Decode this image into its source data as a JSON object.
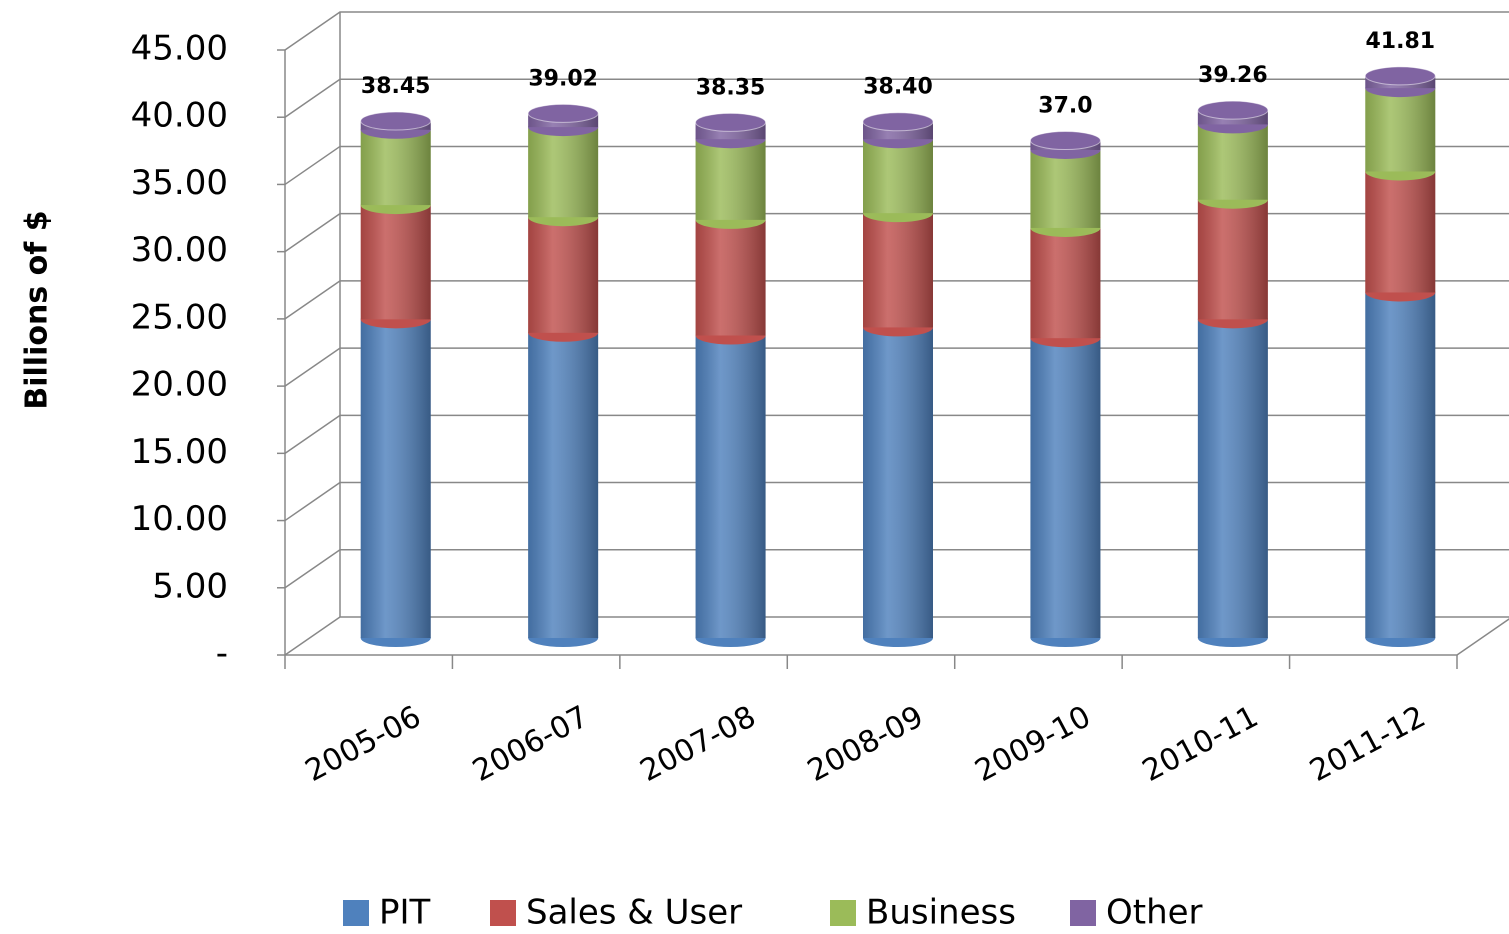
{
  "chart_data": {
    "type": "bar",
    "stacked": true,
    "y_label": "Billions of $",
    "categories": [
      "2005-06",
      "2006-07",
      "2007-08",
      "2008-09",
      "2009-10",
      "2010-11",
      "2011-12"
    ],
    "series": [
      {
        "name": "PIT",
        "color": "#4f81bd",
        "values": [
          23.7,
          22.7,
          22.5,
          23.1,
          22.3,
          23.7,
          25.7
        ]
      },
      {
        "name": "Sales & User",
        "color": "#c0504d",
        "values": [
          8.5,
          8.6,
          8.6,
          8.5,
          8.2,
          8.9,
          9.0
        ]
      },
      {
        "name": "Business",
        "color": "#9bbb59",
        "values": [
          5.6,
          6.7,
          6.0,
          5.5,
          5.8,
          5.6,
          6.2
        ]
      },
      {
        "name": "Other",
        "color": "#8064a2",
        "values": [
          0.65,
          1.02,
          1.25,
          1.3,
          0.7,
          1.06,
          0.91
        ]
      }
    ],
    "totals": {
      "values": [
        38.45,
        39.02,
        38.35,
        38.4,
        37.0,
        39.26,
        41.81
      ],
      "value_labels": [
        "38.45",
        "39.02",
        "38.35",
        "38.40",
        "37.0",
        "39.26",
        "41.81"
      ]
    },
    "ylim": [
      0,
      45
    ],
    "yticks": [
      {
        "value": 0,
        "label": "-"
      },
      {
        "value": 5,
        "label": "5.00"
      },
      {
        "value": 10,
        "label": "10.00"
      },
      {
        "value": 15,
        "label": "15.00"
      },
      {
        "value": 20,
        "label": "20.00"
      },
      {
        "value": 25,
        "label": "25.00"
      },
      {
        "value": 30,
        "label": "30.00"
      },
      {
        "value": 35,
        "label": "35.00"
      },
      {
        "value": 40,
        "label": "40.00"
      },
      {
        "value": 45,
        "label": "45.00"
      }
    ],
    "grid": true,
    "legend": "bottom"
  }
}
